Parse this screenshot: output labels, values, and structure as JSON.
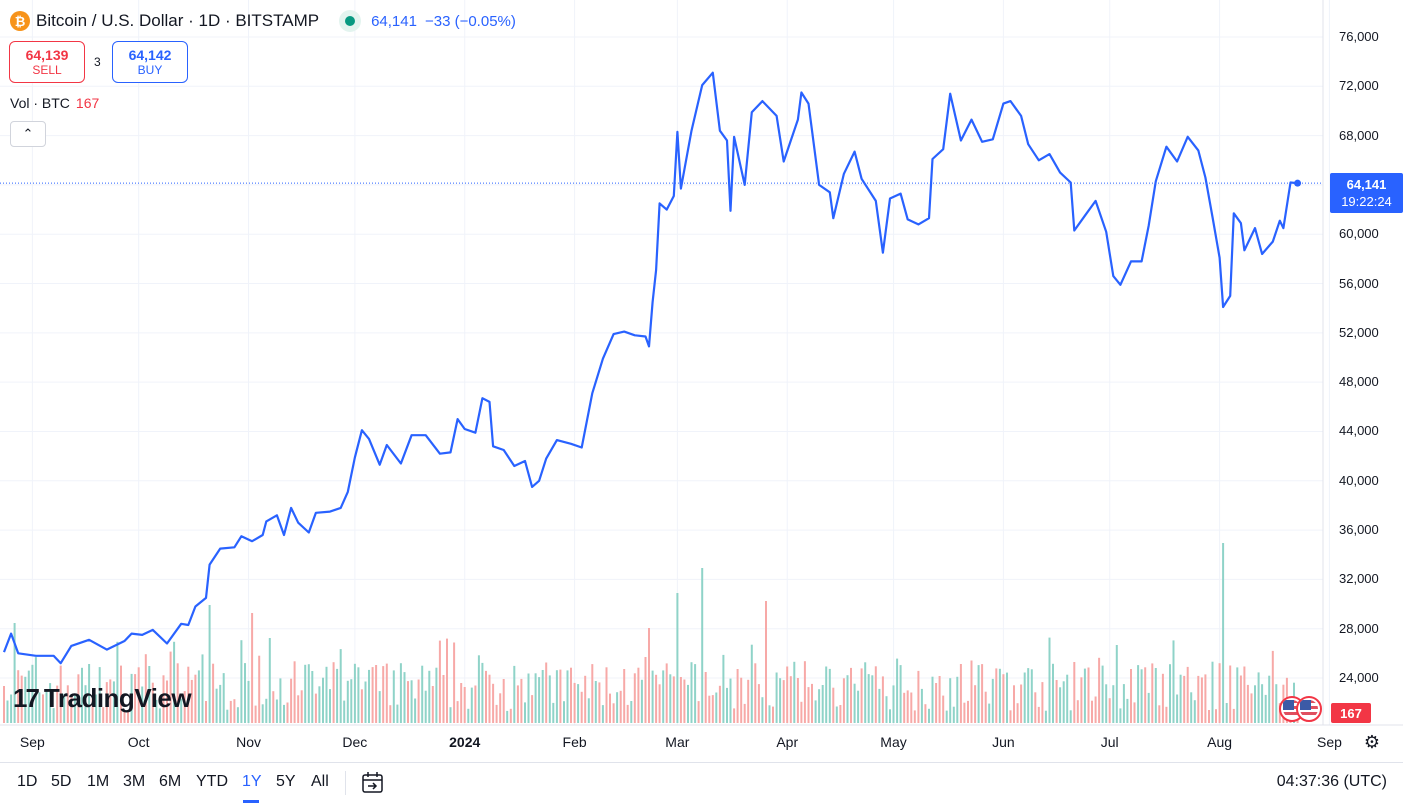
{
  "header": {
    "symbol_icon": "₿",
    "title": "Bitcoin / U.S. Dollar · 1D · BITSTAMP",
    "last_price": "64,141",
    "change": "−33 (−0.05%)"
  },
  "trade": {
    "sell_price": "64,139",
    "sell_label": "SELL",
    "spread": "3",
    "buy_price": "64,142",
    "buy_label": "BUY"
  },
  "volume_legend": {
    "label": "Vol · BTC",
    "value": "167"
  },
  "price_tag": {
    "price": "64,141",
    "countdown": "19:22:24"
  },
  "volume_tag": "167",
  "logo_text": "TradingView",
  "bottom_bar": {
    "ranges": [
      "1D",
      "5D",
      "1M",
      "3M",
      "6M",
      "YTD",
      "1Y",
      "5Y",
      "All"
    ],
    "active_range": "1Y",
    "clock": "04:37:36 (UTC)"
  },
  "colors": {
    "line": "#2962ff",
    "volume_up": "#8fd3c8",
    "volume_down": "#f7a9a7",
    "accent": "#2962ff",
    "sell": "#f23645"
  },
  "chart_data": {
    "type": "line",
    "title": "Bitcoin / U.S. Dollar · 1D · BITSTAMP",
    "y_ticks": [
      "76,000",
      "72,000",
      "68,000",
      "64,000",
      "60,000",
      "56,000",
      "52,000",
      "48,000",
      "44,000",
      "40,000",
      "36,000",
      "32,000",
      "28,000",
      "24,000"
    ],
    "x_ticks": [
      "Sep",
      "Oct",
      "Nov",
      "Dec",
      "2024",
      "Feb",
      "Mar",
      "Apr",
      "May",
      "Jun",
      "Jul",
      "Aug",
      "Sep"
    ],
    "x_start": "2023-08-27",
    "ylim": [
      22500,
      77500
    ],
    "grid": true,
    "series": [
      {
        "points": [
          [
            "2023-08-27",
            26100
          ],
          [
            "2023-08-29",
            27600
          ],
          [
            "2023-08-31",
            26000
          ],
          [
            "2023-09-05",
            25800
          ],
          [
            "2023-09-10",
            25800
          ],
          [
            "2023-09-12",
            25200
          ],
          [
            "2023-09-15",
            26600
          ],
          [
            "2023-09-20",
            27100
          ],
          [
            "2023-09-25",
            26300
          ],
          [
            "2023-09-30",
            27000
          ],
          [
            "2023-10-02",
            27600
          ],
          [
            "2023-10-05",
            27500
          ],
          [
            "2023-10-08",
            27900
          ],
          [
            "2023-10-12",
            26800
          ],
          [
            "2023-10-16",
            28400
          ],
          [
            "2023-10-18",
            28300
          ],
          [
            "2023-10-20",
            29800
          ],
          [
            "2023-10-23",
            30500
          ],
          [
            "2023-10-24",
            33200
          ],
          [
            "2023-10-27",
            34500
          ],
          [
            "2023-10-31",
            34600
          ],
          [
            "2023-11-02",
            35500
          ],
          [
            "2023-11-05",
            35100
          ],
          [
            "2023-11-08",
            35600
          ],
          [
            "2023-11-09",
            36700
          ],
          [
            "2023-11-12",
            37200
          ],
          [
            "2023-11-14",
            35600
          ],
          [
            "2023-11-16",
            37800
          ],
          [
            "2023-11-18",
            36600
          ],
          [
            "2023-11-21",
            35800
          ],
          [
            "2023-11-23",
            37400
          ],
          [
            "2023-11-27",
            37500
          ],
          [
            "2023-11-30",
            37800
          ],
          [
            "2023-12-02",
            39100
          ],
          [
            "2023-12-04",
            41900
          ],
          [
            "2023-12-06",
            44100
          ],
          [
            "2023-12-08",
            43400
          ],
          [
            "2023-12-11",
            41300
          ],
          [
            "2023-12-13",
            42900
          ],
          [
            "2023-12-17",
            41400
          ],
          [
            "2023-12-20",
            43700
          ],
          [
            "2023-12-24",
            43700
          ],
          [
            "2023-12-28",
            42200
          ],
          [
            "2023-12-31",
            42300
          ],
          [
            "2024-01-02",
            45000
          ],
          [
            "2024-01-04",
            44200
          ],
          [
            "2024-01-07",
            43900
          ],
          [
            "2024-01-09",
            46700
          ],
          [
            "2024-01-11",
            46400
          ],
          [
            "2024-01-12",
            42800
          ],
          [
            "2024-01-15",
            42500
          ],
          [
            "2024-01-18",
            41200
          ],
          [
            "2024-01-21",
            41600
          ],
          [
            "2024-01-23",
            39500
          ],
          [
            "2024-01-25",
            40000
          ],
          [
            "2024-01-27",
            41800
          ],
          [
            "2024-01-30",
            43300
          ],
          [
            "2024-02-03",
            43000
          ],
          [
            "2024-02-06",
            42700
          ],
          [
            "2024-02-09",
            47100
          ],
          [
            "2024-02-12",
            49900
          ],
          [
            "2024-02-15",
            51900
          ],
          [
            "2024-02-18",
            52100
          ],
          [
            "2024-02-21",
            51800
          ],
          [
            "2024-02-24",
            51700
          ],
          [
            "2024-02-25",
            50900
          ],
          [
            "2024-02-26",
            54500
          ],
          [
            "2024-02-27",
            57100
          ],
          [
            "2024-02-28",
            62500
          ],
          [
            "2024-03-01",
            62000
          ],
          [
            "2024-03-03",
            63100
          ],
          [
            "2024-03-04",
            68300
          ],
          [
            "2024-03-05",
            63700
          ],
          [
            "2024-03-08",
            68400
          ],
          [
            "2024-03-11",
            72100
          ],
          [
            "2024-03-14",
            73100
          ],
          [
            "2024-03-16",
            68400
          ],
          [
            "2024-03-18",
            67600
          ],
          [
            "2024-03-19",
            61900
          ],
          [
            "2024-03-20",
            67900
          ],
          [
            "2024-03-23",
            64000
          ],
          [
            "2024-03-25",
            69900
          ],
          [
            "2024-03-28",
            70800
          ],
          [
            "2024-04-01",
            69600
          ],
          [
            "2024-04-03",
            65900
          ],
          [
            "2024-04-07",
            69300
          ],
          [
            "2024-04-08",
            71500
          ],
          [
            "2024-04-10",
            70600
          ],
          [
            "2024-04-13",
            64000
          ],
          [
            "2024-04-16",
            63400
          ],
          [
            "2024-04-17",
            61300
          ],
          [
            "2024-04-20",
            64900
          ],
          [
            "2024-04-23",
            66700
          ],
          [
            "2024-04-25",
            64500
          ],
          [
            "2024-04-29",
            62700
          ],
          [
            "2024-05-01",
            58500
          ],
          [
            "2024-05-03",
            62900
          ],
          [
            "2024-05-06",
            63300
          ],
          [
            "2024-05-08",
            61200
          ],
          [
            "2024-05-11",
            60800
          ],
          [
            "2024-05-14",
            61300
          ],
          [
            "2024-05-15",
            66100
          ],
          [
            "2024-05-18",
            66900
          ],
          [
            "2024-05-20",
            71400
          ],
          [
            "2024-05-23",
            67600
          ],
          [
            "2024-05-26",
            69300
          ],
          [
            "2024-05-29",
            67500
          ],
          [
            "2024-06-01",
            67700
          ],
          [
            "2024-06-04",
            70600
          ],
          [
            "2024-06-06",
            70800
          ],
          [
            "2024-06-09",
            69600
          ],
          [
            "2024-06-11",
            67300
          ],
          [
            "2024-06-14",
            66000
          ],
          [
            "2024-06-17",
            66500
          ],
          [
            "2024-06-20",
            65000
          ],
          [
            "2024-06-23",
            64200
          ],
          [
            "2024-06-24",
            60300
          ],
          [
            "2024-06-27",
            61500
          ],
          [
            "2024-06-30",
            62700
          ],
          [
            "2024-07-03",
            60200
          ],
          [
            "2024-07-05",
            56600
          ],
          [
            "2024-07-07",
            55900
          ],
          [
            "2024-07-10",
            57800
          ],
          [
            "2024-07-13",
            57800
          ],
          [
            "2024-07-15",
            60700
          ],
          [
            "2024-07-17",
            64300
          ],
          [
            "2024-07-20",
            67100
          ],
          [
            "2024-07-23",
            65900
          ],
          [
            "2024-07-26",
            67900
          ],
          [
            "2024-07-29",
            66800
          ],
          [
            "2024-07-31",
            64600
          ],
          [
            "2024-08-02",
            61400
          ],
          [
            "2024-08-04",
            58100
          ],
          [
            "2024-08-05",
            54100
          ],
          [
            "2024-08-07",
            55000
          ],
          [
            "2024-08-08",
            61700
          ],
          [
            "2024-08-10",
            60900
          ],
          [
            "2024-08-11",
            58700
          ],
          [
            "2024-08-14",
            60500
          ],
          [
            "2024-08-16",
            58400
          ],
          [
            "2024-08-19",
            59400
          ],
          [
            "2024-08-21",
            61100
          ],
          [
            "2024-08-22",
            60500
          ],
          [
            "2024-08-24",
            64200
          ],
          [
            "2024-08-26",
            64141
          ]
        ]
      }
    ],
    "last_value": 64141,
    "volume_label": "Vol · BTC",
    "volume_last": 167
  }
}
